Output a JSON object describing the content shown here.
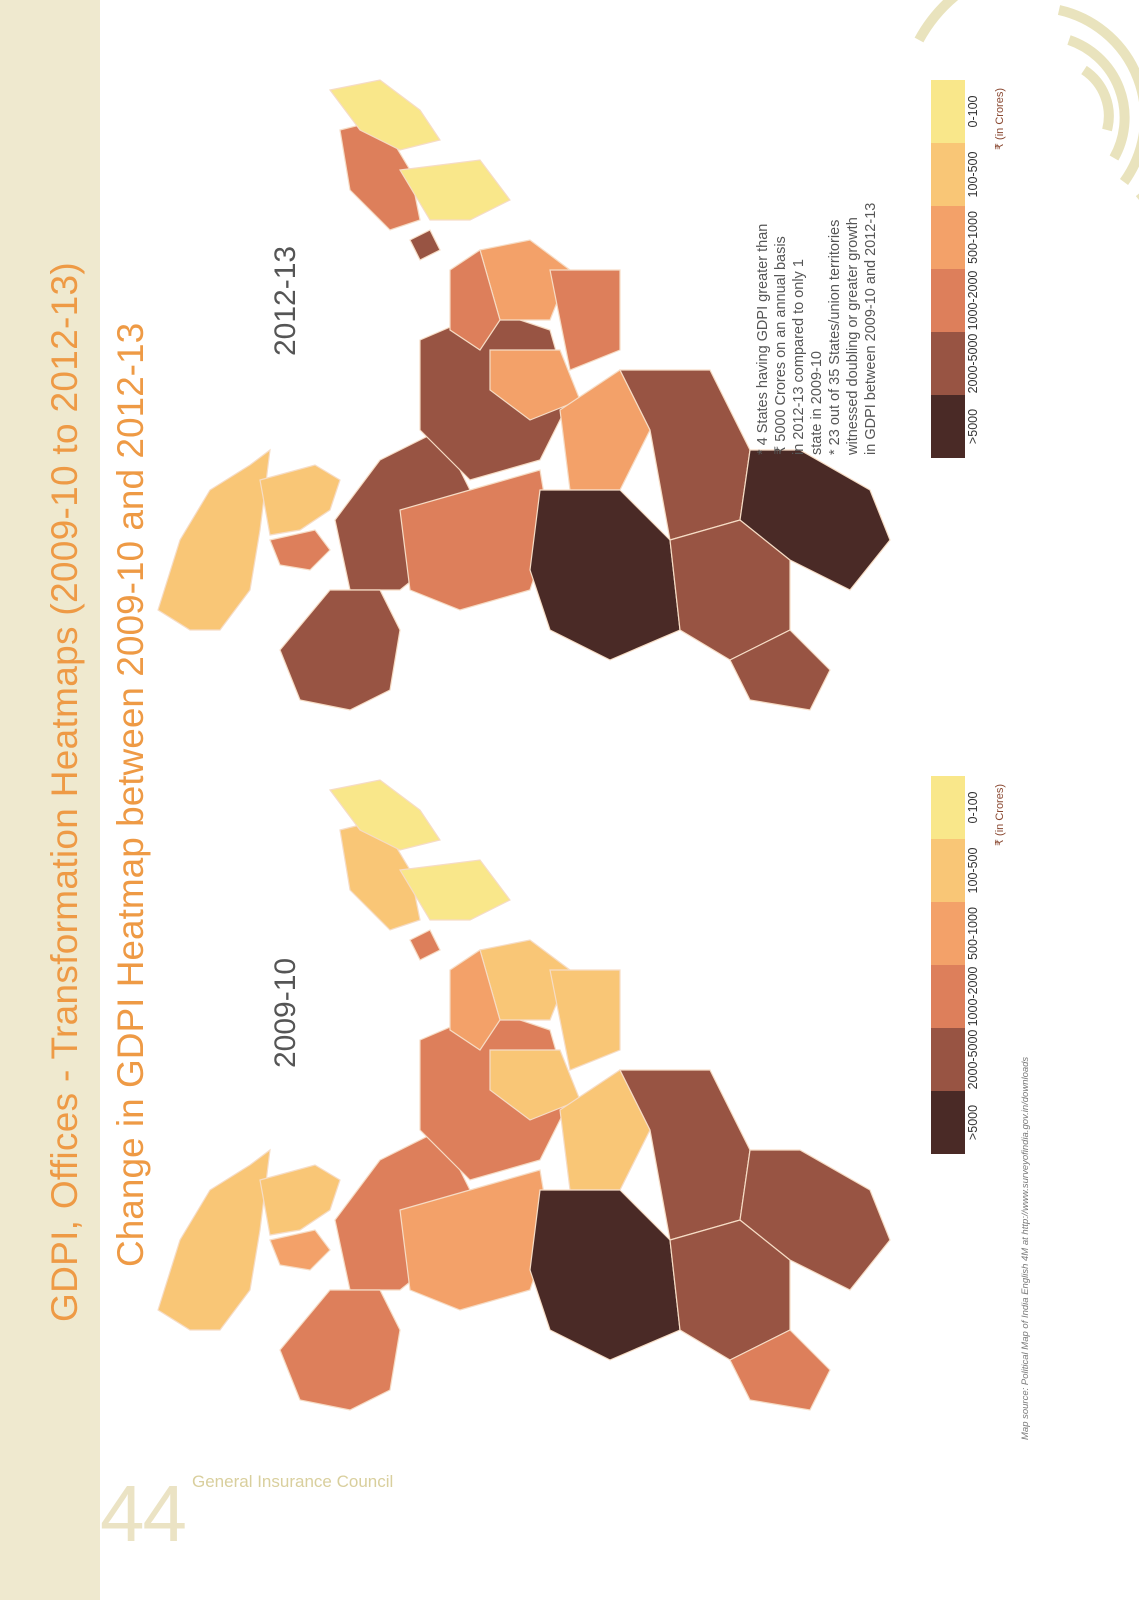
{
  "page": {
    "title": "GDPI, Offices - Transformation Heatmaps (2009-10 to 2012-13)",
    "subtitle": "Change in GDPI Heatmap between 2009-10 and 2012-13",
    "page_number": "44",
    "publisher": "General Insurance Council",
    "source_note": "Map source: Political Map of India English 4M at http://www.surveyofindia.gov.in/downloads"
  },
  "maps": [
    {
      "label": "2012-13"
    },
    {
      "label": "2009-10"
    }
  ],
  "notes": {
    "lines": [
      "*  4 States having GDPI greater than",
      "   ₹ 5000 Crores on an annual basis",
      "   in 2012-13 compared to only 1",
      "   state in 2009-10",
      "*  23 out of 35 States/union territories",
      "   witnessed doubling or greater growth",
      "   in GDPI between 2009-10 and 2012-13"
    ]
  },
  "legend": {
    "unit": "₹ (in Crores)",
    "bins": [
      {
        "label": ">5000",
        "color": "#4a2a26"
      },
      {
        "label": "2000-5000",
        "color": "#985443"
      },
      {
        "label": "1000-2000",
        "color": "#dd7f5b"
      },
      {
        "label": "500-1000",
        "color": "#f3a169"
      },
      {
        "label": "100-500",
        "color": "#f9c676"
      },
      {
        "label": "0-100",
        "color": "#f9e78a"
      }
    ]
  }
}
